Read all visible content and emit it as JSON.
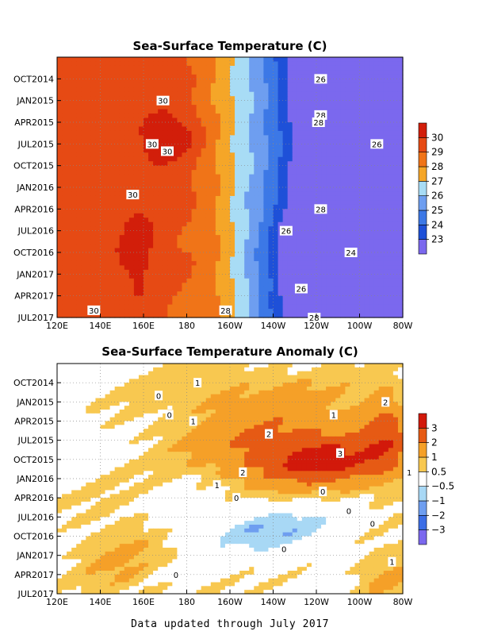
{
  "footer": "Data updated through July 2017",
  "chart_data": [
    {
      "type": "heatmap",
      "title": "Sea-Surface Temperature (C)",
      "xlabel": "",
      "ylabel": "",
      "x_ticks": [
        "120E",
        "140E",
        "160E",
        "180",
        "160W",
        "140W",
        "120W",
        "100W",
        "80W"
      ],
      "y_ticks": [
        "OCT2014",
        "JAN2015",
        "APR2015",
        "JUL2015",
        "OCT2015",
        "JAN2016",
        "APR2016",
        "JUL2016",
        "OCT2016",
        "JAN2017",
        "APR2017",
        "JUL2017"
      ],
      "levels": [
        23,
        24,
        25,
        26,
        27,
        28,
        29,
        30
      ],
      "level_labels": [
        "23",
        "24",
        "25",
        "26",
        "27",
        "28",
        "29",
        "30"
      ],
      "colors": [
        "#7B68EE",
        "#1E50D8",
        "#3C78E6",
        "#6E9EF0",
        "#A8DCF5",
        "#F5A628",
        "#F07418",
        "#E64A14",
        "#D21E0A"
      ],
      "contour_labels": [
        {
          "text": "26",
          "lon": 242,
          "month": 3
        },
        {
          "text": "30",
          "lon": 169,
          "month": 6
        },
        {
          "text": "28",
          "lon": 242,
          "month": 8
        },
        {
          "text": "28",
          "lon": 241,
          "month": 9
        },
        {
          "text": "26",
          "lon": 268,
          "month": 12
        },
        {
          "text": "30",
          "lon": 164,
          "month": 12
        },
        {
          "text": "30",
          "lon": 171,
          "month": 13
        },
        {
          "text": "28",
          "lon": 242,
          "month": 21
        },
        {
          "text": "30",
          "lon": 155,
          "month": 19
        },
        {
          "text": "26",
          "lon": 226,
          "month": 24
        },
        {
          "text": "24",
          "lon": 256,
          "month": 27
        },
        {
          "text": "26",
          "lon": 233,
          "month": 32
        },
        {
          "text": "28",
          "lon": 198,
          "month": 35
        },
        {
          "text": "28",
          "lon": 239,
          "month": 36
        },
        {
          "text": "30",
          "lon": 137,
          "month": 35
        }
      ]
    },
    {
      "type": "heatmap",
      "title": "Sea-Surface Temperature Anomaly (C)",
      "xlabel": "",
      "ylabel": "",
      "x_ticks": [
        "120E",
        "140E",
        "160E",
        "180",
        "160W",
        "140W",
        "120W",
        "100W",
        "80W"
      ],
      "y_ticks": [
        "OCT2014",
        "JAN2015",
        "APR2015",
        "JUL2015",
        "OCT2015",
        "JAN2016",
        "APR2016",
        "JUL2016",
        "OCT2016",
        "JAN2017",
        "APR2017",
        "JUL2017"
      ],
      "levels": [
        -3,
        -2,
        -1,
        -0.5,
        0.5,
        1,
        2,
        3
      ],
      "level_labels": [
        "-3",
        "-2",
        "-1",
        "-0.5",
        "0.5",
        "1",
        "2",
        "3"
      ],
      "colors": [
        "#7B68EE",
        "#3C6EE6",
        "#6E9EF0",
        "#A8D8F5",
        "#FFFFFF",
        "#F8C850",
        "#F5A028",
        "#E65A14",
        "#D2190A"
      ],
      "contour_labels": [
        {
          "text": "1",
          "lon": 185,
          "month": 3
        },
        {
          "text": "0",
          "lon": 167,
          "month": 5
        },
        {
          "text": "0",
          "lon": 172,
          "month": 8
        },
        {
          "text": "1",
          "lon": 183,
          "month": 9
        },
        {
          "text": "1",
          "lon": 248,
          "month": 8
        },
        {
          "text": "2",
          "lon": 272,
          "month": 6
        },
        {
          "text": "2",
          "lon": 218,
          "month": 11
        },
        {
          "text": "3",
          "lon": 251,
          "month": 14
        },
        {
          "text": "2",
          "lon": 206,
          "month": 17
        },
        {
          "text": "1",
          "lon": 283,
          "month": 17
        },
        {
          "text": "1",
          "lon": 194,
          "month": 19
        },
        {
          "text": "0",
          "lon": 203,
          "month": 21
        },
        {
          "text": "0",
          "lon": 243,
          "month": 20
        },
        {
          "text": "0",
          "lon": 255,
          "month": 23
        },
        {
          "text": "0",
          "lon": 266,
          "month": 25
        },
        {
          "text": "0",
          "lon": 225,
          "month": 29
        },
        {
          "text": "1",
          "lon": 275,
          "month": 31
        },
        {
          "text": "0",
          "lon": 175,
          "month": 33
        }
      ]
    }
  ]
}
